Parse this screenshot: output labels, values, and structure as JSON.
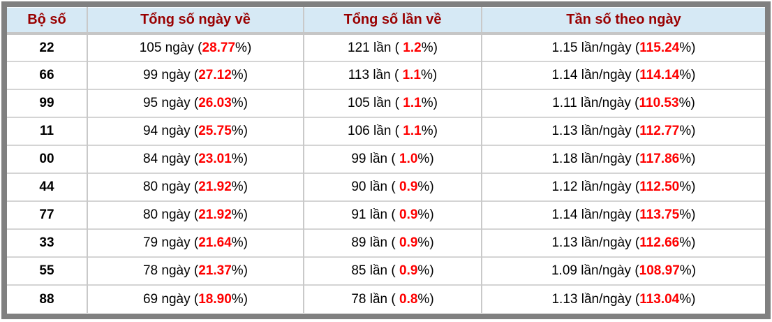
{
  "colors": {
    "header_bg": "#d6e9f5",
    "header_text": "#990000",
    "accent_red": "#ff0000",
    "frame_gray": "#808080",
    "divider_gray": "#c9c9c9"
  },
  "table": {
    "headers": [
      "Bộ số",
      "Tổng số ngày về",
      "Tổng số lần về",
      "Tần số theo ngày"
    ],
    "rows": [
      {
        "pair": "22",
        "days": {
          "pre": "105 ngày (",
          "value": "28.77",
          "post": "%)"
        },
        "times": {
          "pre": "121 lần ( ",
          "value": "1.2",
          "post": "%)"
        },
        "freq": {
          "pre": "1.15 lần/ngày (",
          "value": "115.24",
          "post": "%)"
        }
      },
      {
        "pair": "66",
        "days": {
          "pre": "99 ngày (",
          "value": "27.12",
          "post": "%)"
        },
        "times": {
          "pre": "113 lần ( ",
          "value": "1.1",
          "post": "%)"
        },
        "freq": {
          "pre": "1.14 lần/ngày (",
          "value": "114.14",
          "post": "%)"
        }
      },
      {
        "pair": "99",
        "days": {
          "pre": "95 ngày (",
          "value": "26.03",
          "post": "%)"
        },
        "times": {
          "pre": "105 lần ( ",
          "value": "1.1",
          "post": "%)"
        },
        "freq": {
          "pre": "1.11 lần/ngày (",
          "value": "110.53",
          "post": "%)"
        }
      },
      {
        "pair": "11",
        "days": {
          "pre": "94 ngày (",
          "value": "25.75",
          "post": "%)"
        },
        "times": {
          "pre": "106 lần ( ",
          "value": "1.1",
          "post": "%)"
        },
        "freq": {
          "pre": "1.13 lần/ngày (",
          "value": "112.77",
          "post": "%)"
        }
      },
      {
        "pair": "00",
        "days": {
          "pre": "84 ngày (",
          "value": "23.01",
          "post": "%)"
        },
        "times": {
          "pre": "99 lần ( ",
          "value": "1.0",
          "post": "%)"
        },
        "freq": {
          "pre": "1.18 lần/ngày (",
          "value": "117.86",
          "post": "%)"
        }
      },
      {
        "pair": "44",
        "days": {
          "pre": "80 ngày (",
          "value": "21.92",
          "post": "%)"
        },
        "times": {
          "pre": "90 lần ( ",
          "value": "0.9",
          "post": "%)"
        },
        "freq": {
          "pre": "1.12 lần/ngày (",
          "value": "112.50",
          "post": "%)"
        }
      },
      {
        "pair": "77",
        "days": {
          "pre": "80 ngày (",
          "value": "21.92",
          "post": "%)"
        },
        "times": {
          "pre": "91 lần ( ",
          "value": "0.9",
          "post": "%)"
        },
        "freq": {
          "pre": "1.14 lần/ngày (",
          "value": "113.75",
          "post": "%)"
        }
      },
      {
        "pair": "33",
        "days": {
          "pre": "79 ngày (",
          "value": "21.64",
          "post": "%)"
        },
        "times": {
          "pre": "89 lần ( ",
          "value": "0.9",
          "post": "%)"
        },
        "freq": {
          "pre": "1.13 lần/ngày (",
          "value": "112.66",
          "post": "%)"
        }
      },
      {
        "pair": "55",
        "days": {
          "pre": "78 ngày (",
          "value": "21.37",
          "post": "%)"
        },
        "times": {
          "pre": "85 lần ( ",
          "value": "0.9",
          "post": "%)"
        },
        "freq": {
          "pre": "1.09 lần/ngày (",
          "value": "108.97",
          "post": "%)"
        }
      },
      {
        "pair": "88",
        "days": {
          "pre": "69 ngày (",
          "value": "18.90",
          "post": "%)"
        },
        "times": {
          "pre": "78 lần ( ",
          "value": "0.8",
          "post": "%)"
        },
        "freq": {
          "pre": "1.13 lần/ngày (",
          "value": "113.04",
          "post": "%)"
        }
      }
    ]
  }
}
